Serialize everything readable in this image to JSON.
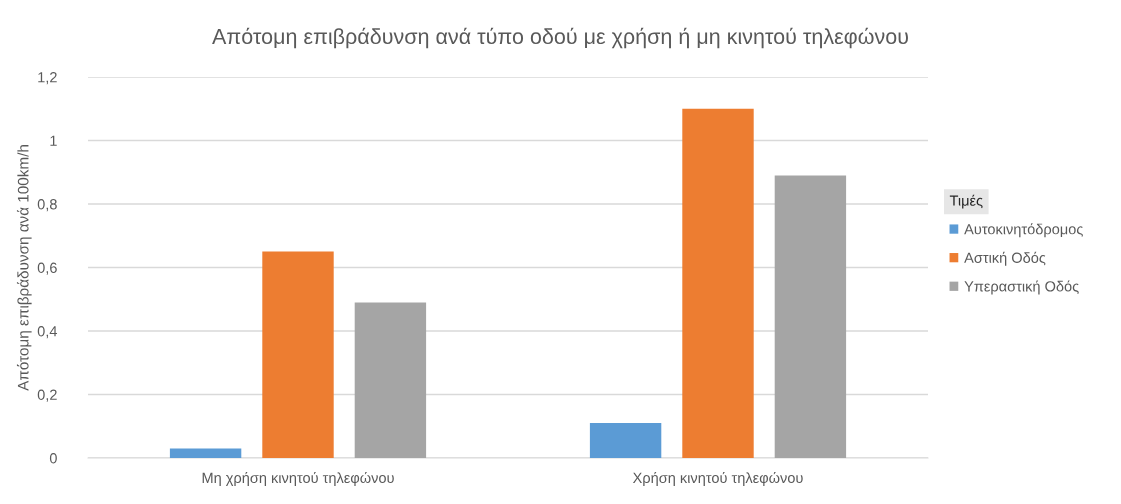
{
  "chart_data": {
    "type": "bar",
    "title": "Απότομη επιβράδυνση ανά τύπο οδού με χρήση ή μη κινητού τηλεφώνου",
    "ylabel": "Απότομη επιβράδυνση ανά 100km/h",
    "categories": [
      "Μη χρήση κινητού τηλεφώνου",
      "Χρήση κινητού τηλεφώνου"
    ],
    "series": [
      {
        "name": "Αυτοκινητόδρομος",
        "color": "#5b9bd5",
        "values": [
          0.03,
          0.11
        ]
      },
      {
        "name": "Αστική Οδός",
        "color": "#ed7d31",
        "values": [
          0.65,
          1.1
        ]
      },
      {
        "name": "Υπεραστική Οδός",
        "color": "#a5a5a5",
        "values": [
          0.49,
          0.89
        ]
      }
    ],
    "legend_title": "Τιμές",
    "ylim": [
      0,
      1.2
    ],
    "yticks": [
      0,
      {
        "value": 0.2,
        "label": "0,2"
      },
      {
        "value": 0.4,
        "label": "0,4"
      },
      {
        "value": 0.6,
        "label": "0,6"
      },
      {
        "value": 0.8,
        "label": "0,8"
      },
      1,
      {
        "value": 1.2,
        "label": "1,2"
      }
    ],
    "grid": "y",
    "legend": "right"
  }
}
